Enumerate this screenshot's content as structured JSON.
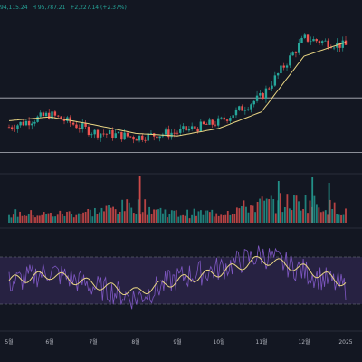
{
  "header": {
    "values": [
      {
        "text": "94,115.24",
        "color": "#26a69a"
      },
      {
        "text": "H 95,787.21",
        "color": "#26a69a"
      },
      {
        "text": "+2,227.14 (+2.37%)",
        "color": "#26a69a"
      }
    ]
  },
  "colors": {
    "background": "#131722",
    "up": "#26a69a",
    "down": "#ef5350",
    "ma_line": "#e8d583",
    "rsi_line": "#7e57c2",
    "rsi_signal": "#e8d583",
    "rsi_band": "#2a2446",
    "level_line": "#d1d4dc",
    "axis_text": "#b2b5be",
    "separator": "#2a2e39"
  },
  "chart_data": [
    {
      "type": "candlestick",
      "panel": "price",
      "x": [
        "5월",
        "6월",
        "7월",
        "8월",
        "9월",
        "10월",
        "11월",
        "12월",
        "2025"
      ],
      "close": [
        62000,
        67000,
        60000,
        58000,
        60000,
        64000,
        74000,
        97000,
        94115
      ],
      "moving_average": [
        64500,
        66000,
        63000,
        59500,
        58500,
        61500,
        68000,
        90000,
        95500
      ],
      "horizontal_levels": [
        73500,
        52000
      ]
    },
    {
      "type": "bar",
      "panel": "volume",
      "x": [
        "5월",
        "6월",
        "7월",
        "8월",
        "9월",
        "10월",
        "11월",
        "12월",
        "2025"
      ],
      "values": [
        26,
        22,
        30,
        48,
        24,
        28,
        52,
        58,
        34
      ]
    },
    {
      "type": "line",
      "panel": "rsi",
      "x": [
        "5월",
        "6월",
        "7월",
        "8월",
        "9월",
        "10월",
        "11월",
        "12월",
        "2025"
      ],
      "series": [
        {
          "values": [
            48,
            58,
            45,
            35,
            52,
            60,
            72,
            58,
            44
          ]
        },
        {
          "values": [
            50,
            55,
            47,
            40,
            50,
            57,
            68,
            60,
            48
          ]
        }
      ],
      "levels": [
        70,
        30
      ],
      "ylim": [
        10,
        90
      ]
    }
  ],
  "x_axis": {
    "ticks": [
      "5월",
      "6월",
      "7월",
      "8월",
      "9월",
      "10월",
      "11월",
      "12월",
      "2025"
    ]
  }
}
